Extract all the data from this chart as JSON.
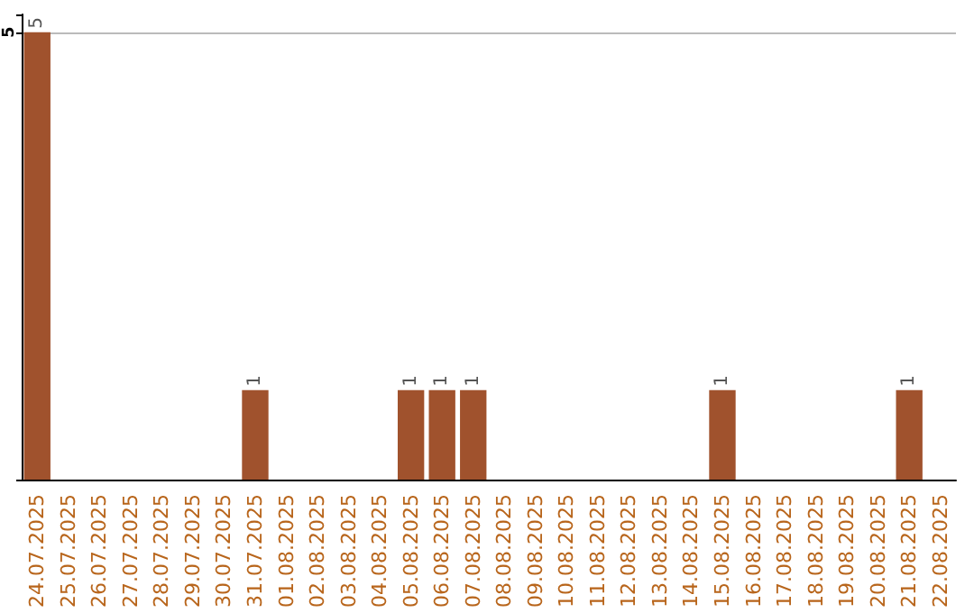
{
  "chart_data": {
    "type": "bar",
    "categories": [
      "24.07.2025",
      "25.07.2025",
      "26.07.2025",
      "27.07.2025",
      "28.07.2025",
      "29.07.2025",
      "30.07.2025",
      "31.07.2025",
      "01.08.2025",
      "02.08.2025",
      "03.08.2025",
      "04.08.2025",
      "05.08.2025",
      "06.08.2025",
      "07.08.2025",
      "08.08.2025",
      "09.08.2025",
      "10.08.2025",
      "11.08.2025",
      "12.08.2025",
      "13.08.2025",
      "14.08.2025",
      "15.08.2025",
      "16.08.2025",
      "17.08.2025",
      "18.08.2025",
      "19.08.2025",
      "20.08.2025",
      "21.08.2025",
      "22.08.2025"
    ],
    "values": [
      5,
      0,
      0,
      0,
      0,
      0,
      0,
      1,
      0,
      0,
      0,
      0,
      1,
      1,
      1,
      0,
      0,
      0,
      0,
      0,
      0,
      0,
      1,
      0,
      0,
      0,
      0,
      0,
      1,
      0
    ],
    "value_labels": [
      "5",
      null,
      null,
      null,
      null,
      null,
      null,
      "1",
      null,
      null,
      null,
      null,
      "1",
      "1",
      "1",
      null,
      null,
      null,
      null,
      null,
      null,
      null,
      "1",
      null,
      null,
      null,
      null,
      null,
      "1",
      null
    ],
    "color": "#a0522d",
    "ylim": [
      0,
      5.2
    ],
    "yticks": [
      5
    ],
    "grid": "y"
  }
}
